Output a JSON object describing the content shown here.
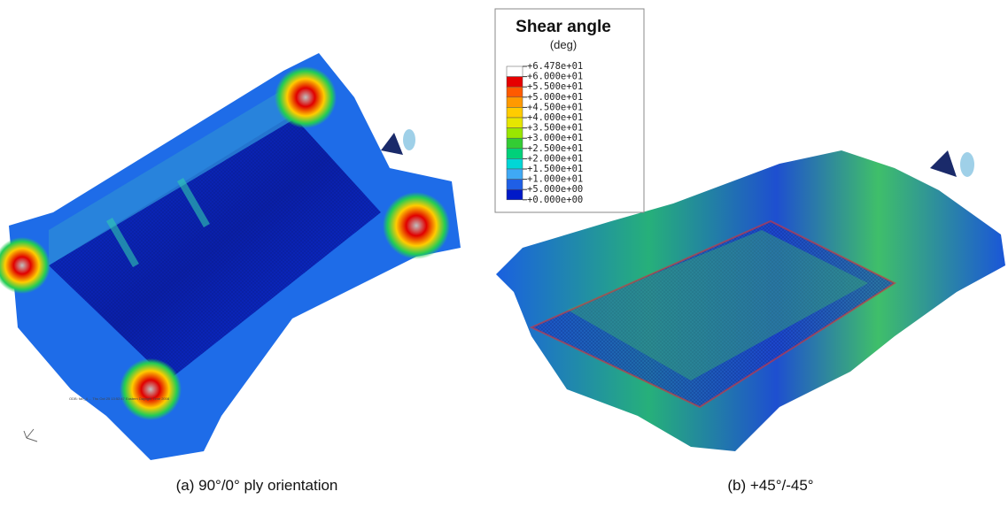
{
  "legend": {
    "title": "Shear angle",
    "unit": "(deg)",
    "labels": [
      "+6.478e+01",
      "+6.000e+01",
      "+5.500e+01",
      "+5.000e+01",
      "+4.500e+01",
      "+4.000e+01",
      "+3.500e+01",
      "+3.000e+01",
      "+2.500e+01",
      "+2.000e+01",
      "+1.500e+01",
      "+1.000e+01",
      "+5.000e+00",
      "+0.000e+00"
    ],
    "colors": [
      "#ffffff",
      "#e60000",
      "#ff5a00",
      "#ff9900",
      "#ffcc00",
      "#e6e600",
      "#99e600",
      "#33cc33",
      "#00d17a",
      "#00d6d6",
      "#3fa9f5",
      "#1f5fe6",
      "#0019c8"
    ]
  },
  "captions": [
    "(a) 90°/0° ply orientation",
    "(b) +45°/-45°"
  ]
}
